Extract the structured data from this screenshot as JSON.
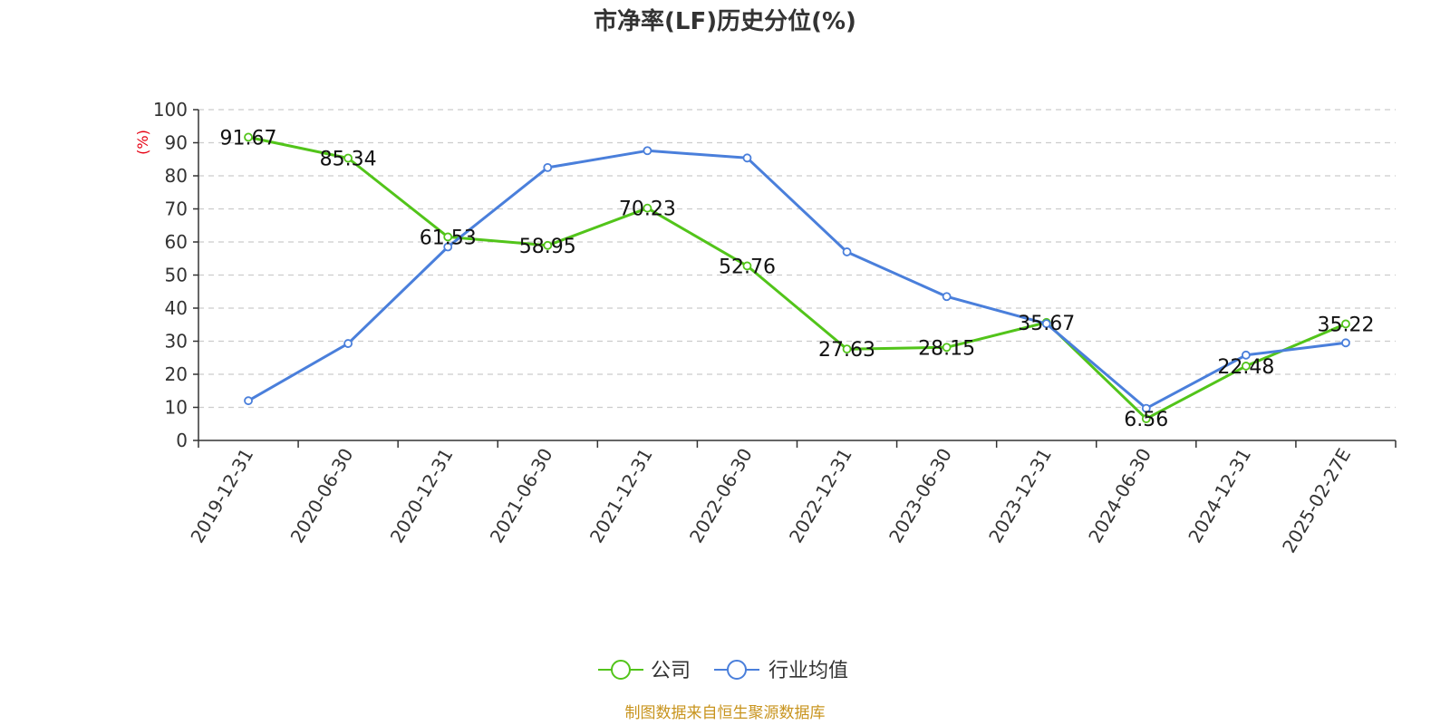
{
  "chart_data": {
    "type": "line",
    "title": "市净率(LF)历史分位(%)",
    "ylabel": "(%)",
    "ylim": [
      0,
      100
    ],
    "yticks": [
      "0",
      "10",
      "20",
      "30",
      "40",
      "50",
      "60",
      "70",
      "80",
      "90",
      "100"
    ],
    "categories": [
      "2019-12-31",
      "2020-06-30",
      "2020-12-31",
      "2021-06-30",
      "2021-12-31",
      "2022-06-30",
      "2022-12-31",
      "2023-06-30",
      "2023-12-31",
      "2024-06-30",
      "2024-12-31",
      "2025-02-27E"
    ],
    "grid": true,
    "legend_position": "bottom",
    "series": [
      {
        "name": "公司",
        "color": "#52c41a",
        "values": [
          91.67,
          85.34,
          61.53,
          58.95,
          70.23,
          52.76,
          27.63,
          28.15,
          35.67,
          6.56,
          22.48,
          35.22
        ],
        "labels": [
          "91.67",
          "85.34",
          "61.53",
          "58.95",
          "70.23",
          "52.76",
          "27.63",
          "28.15",
          "35.67",
          "6.56",
          "22.48",
          "35.22"
        ]
      },
      {
        "name": "行业均值",
        "color": "#4a7fdb",
        "values": [
          12.0,
          29.3,
          58.5,
          82.5,
          87.6,
          85.4,
          57.0,
          43.5,
          35.3,
          9.7,
          25.8,
          29.5
        ]
      }
    ],
    "source": "制图数据来自恒生聚源数据库"
  }
}
